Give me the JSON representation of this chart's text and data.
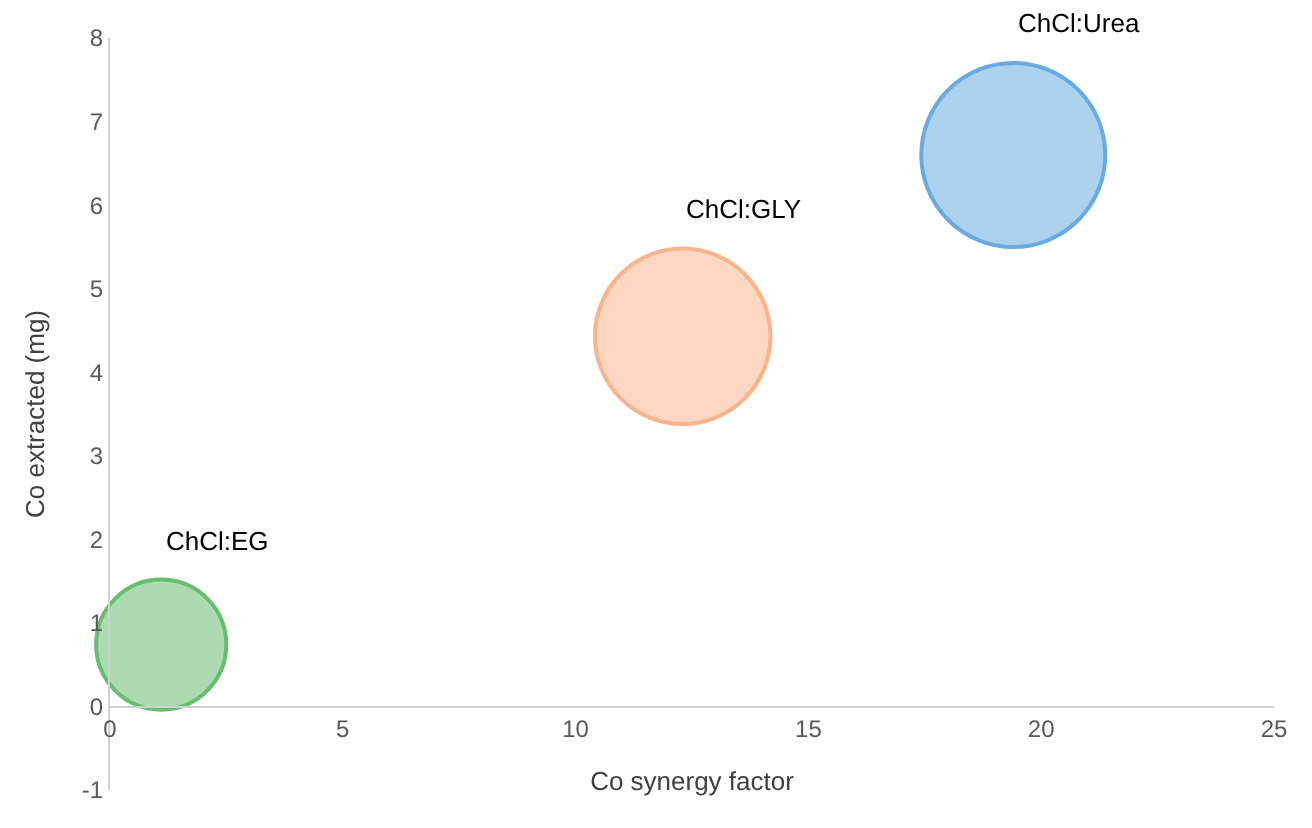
{
  "chart_data": {
    "type": "bubble",
    "xlabel": "Co synergy factor",
    "ylabel": "Co extracted (mg)",
    "xlim": [
      0,
      25
    ],
    "xticks": [
      0,
      5,
      10,
      15,
      20,
      25
    ],
    "ylim": [
      -1,
      8
    ],
    "yticks": [
      -1,
      0,
      1,
      2,
      3,
      4,
      5,
      6,
      7,
      8
    ],
    "legend": false,
    "series": [
      {
        "name": "ChCl:EG",
        "color": "#27a336",
        "x": [
          1.1
        ],
        "values": [
          0.74
        ],
        "sizes": [
          0.5
        ]
      },
      {
        "name": "ChCl:GLY",
        "color": "#f7955c",
        "x": [
          12.3
        ],
        "values": [
          4.43
        ],
        "sizes": [
          0.91
        ]
      },
      {
        "name": "ChCl:Urea",
        "color": "#2a88d4",
        "x": [
          19.4
        ],
        "values": [
          6.6
        ],
        "sizes": [
          1
        ]
      }
    ]
  }
}
